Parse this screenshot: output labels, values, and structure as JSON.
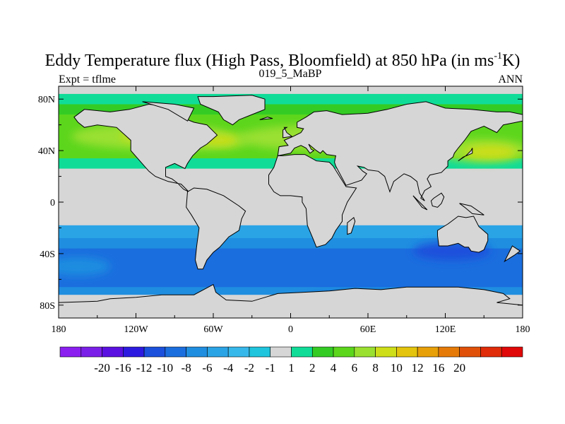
{
  "chart_data": {
    "type": "heatmap",
    "title_main": "Eddy Temperature flux (High Pass, Bloomfield) at 850 hPa (in ms",
    "title_sup": "-1",
    "title_end": "K)",
    "left_string": "Expt = tflme",
    "center_string": "019_5_MaBP",
    "right_string": "ANN",
    "x_ticks": [
      {
        "value": -180,
        "label": "180"
      },
      {
        "value": -120,
        "label": "120W"
      },
      {
        "value": -60,
        "label": "60W"
      },
      {
        "value": 0,
        "label": "0"
      },
      {
        "value": 60,
        "label": "60E"
      },
      {
        "value": 120,
        "label": "120E"
      },
      {
        "value": 180,
        "label": "180"
      }
    ],
    "y_ticks": [
      {
        "value": 80,
        "label": "80N"
      },
      {
        "value": 40,
        "label": "40N"
      },
      {
        "value": 0,
        "label": "0"
      },
      {
        "value": -40,
        "label": "40S"
      },
      {
        "value": -80,
        "label": "80S"
      }
    ],
    "xlim": [
      -180,
      180
    ],
    "ylim": [
      -90,
      90
    ],
    "colorbar": {
      "colors": [
        "#8a1ff0",
        "#7a1fe8",
        "#5a10e0",
        "#2d1ae0",
        "#1a50dc",
        "#1b6ede",
        "#1f8ee0",
        "#2ba4e6",
        "#37b8ea",
        "#1fc5dd",
        "#d6d6d6",
        "#10dc98",
        "#34cc24",
        "#5cd61c",
        "#9ae030",
        "#cede18",
        "#e4c40c",
        "#e8a008",
        "#e67a08",
        "#e05008",
        "#e02c08",
        "#e00808"
      ],
      "labels": [
        "-20",
        "-16",
        "-12",
        "-10",
        "-8",
        "-6",
        "-4",
        "-2",
        "-1",
        "1",
        "2",
        "4",
        "6",
        "8",
        "10",
        "12",
        "16",
        "20"
      ],
      "label_boundaries": [
        2,
        3,
        4,
        5,
        6,
        7,
        8,
        9,
        10,
        11,
        12,
        13,
        14,
        15,
        16,
        17,
        18,
        19,
        20,
        21
      ]
    },
    "zonal_bands": [
      {
        "lat_from": 90,
        "lat_to": 84,
        "color": "#d6d6d6"
      },
      {
        "lat_from": 84,
        "lat_to": 76,
        "color": "#10dc98"
      },
      {
        "lat_from": 76,
        "lat_to": 68,
        "color": "#34cc24"
      },
      {
        "lat_from": 68,
        "lat_to": 34,
        "color": "#5cd61c"
      },
      {
        "lat_from": 34,
        "lat_to": 26,
        "color": "#10dc98"
      },
      {
        "lat_from": 26,
        "lat_to": -18,
        "color": "#d6d6d6"
      },
      {
        "lat_from": -18,
        "lat_to": -28,
        "color": "#2ba4e6"
      },
      {
        "lat_from": -28,
        "lat_to": -36,
        "color": "#1f8ee0"
      },
      {
        "lat_from": -36,
        "lat_to": -66,
        "color": "#1b6ede"
      },
      {
        "lat_from": -66,
        "lat_to": -72,
        "color": "#1f8ee0"
      },
      {
        "lat_from": -72,
        "lat_to": -90,
        "color": "#d6d6d6"
      }
    ],
    "flux_patches": [
      {
        "lon": -110,
        "lat": 51,
        "rlon": 60,
        "rlat": 10,
        "color": "#9ae030"
      },
      {
        "lon": -60,
        "lat": 48,
        "rlon": 28,
        "rlat": 7,
        "color": "#9ae030"
      },
      {
        "lon": -100,
        "lat": 51,
        "rlon": 32,
        "rlat": 5,
        "color": "#cede18"
      },
      {
        "lon": -55,
        "lat": 48,
        "rlon": 14,
        "rlat": 4,
        "color": "#cede18"
      },
      {
        "lon": 20,
        "lat": 50,
        "rlon": 60,
        "rlat": 10,
        "color": "#9ae030"
      },
      {
        "lon": 30,
        "lat": 48,
        "rlon": 18,
        "rlat": 5,
        "color": "#cede18"
      },
      {
        "lon": 150,
        "lat": 40,
        "rlon": 35,
        "rlat": 9,
        "color": "#9ae030"
      },
      {
        "lon": 155,
        "lat": 39,
        "rlon": 20,
        "rlat": 5,
        "color": "#cede18"
      },
      {
        "lon": 55,
        "lat": -77,
        "rlon": 50,
        "rlat": 6,
        "color": "#1a50dc"
      },
      {
        "lon": 50,
        "lat": -76,
        "rlon": 20,
        "rlat": 3,
        "color": "#2d1ae0"
      },
      {
        "lon": 125,
        "lat": -38,
        "rlon": 30,
        "rlat": 7,
        "color": "#1a50dc"
      },
      {
        "lon": -165,
        "lat": -50,
        "rlon": 25,
        "rlat": 7,
        "color": "#1f8ee0"
      },
      {
        "lon": 40,
        "lat": -86,
        "rlon": 60,
        "rlat": 3,
        "color": "#34cc24"
      }
    ],
    "land_polygons": [
      [
        [
          -168,
          66
        ],
        [
          -160,
          72
        ],
        [
          -140,
          70
        ],
        [
          -125,
          72
        ],
        [
          -110,
          76
        ],
        [
          -95,
          74
        ],
        [
          -85,
          70
        ],
        [
          -80,
          64
        ],
        [
          -75,
          62
        ],
        [
          -65,
          60
        ],
        [
          -57,
          52
        ],
        [
          -65,
          45
        ],
        [
          -70,
          42
        ],
        [
          -76,
          36
        ],
        [
          -80,
          30
        ],
        [
          -82,
          26
        ],
        [
          -90,
          30
        ],
        [
          -97,
          27
        ],
        [
          -97,
          20
        ],
        [
          -92,
          18
        ],
        [
          -88,
          15
        ],
        [
          -83,
          10
        ],
        [
          -79,
          8
        ],
        [
          -85,
          14
        ],
        [
          -95,
          16
        ],
        [
          -105,
          20
        ],
        [
          -110,
          24
        ],
        [
          -117,
          32
        ],
        [
          -124,
          40
        ],
        [
          -124,
          48
        ],
        [
          -135,
          58
        ],
        [
          -150,
          60
        ],
        [
          -160,
          58
        ],
        [
          -165,
          62
        ],
        [
          -168,
          66
        ]
      ],
      [
        [
          -72,
          82
        ],
        [
          -60,
          82
        ],
        [
          -30,
          83
        ],
        [
          -20,
          80
        ],
        [
          -20,
          72
        ],
        [
          -30,
          68
        ],
        [
          -40,
          64
        ],
        [
          -45,
          60
        ],
        [
          -52,
          64
        ],
        [
          -56,
          70
        ],
        [
          -70,
          76
        ],
        [
          -72,
          82
        ]
      ],
      [
        [
          -80,
          8
        ],
        [
          -75,
          11
        ],
        [
          -65,
          10
        ],
        [
          -52,
          5
        ],
        [
          -40,
          -3
        ],
        [
          -35,
          -7
        ],
        [
          -38,
          -13
        ],
        [
          -40,
          -22
        ],
        [
          -48,
          -27
        ],
        [
          -55,
          -35
        ],
        [
          -60,
          -39
        ],
        [
          -65,
          -45
        ],
        [
          -68,
          -52
        ],
        [
          -72,
          -52
        ],
        [
          -74,
          -45
        ],
        [
          -73,
          -35
        ],
        [
          -71,
          -20
        ],
        [
          -77,
          -10
        ],
        [
          -81,
          -4
        ],
        [
          -80,
          8
        ]
      ],
      [
        [
          -10,
          36
        ],
        [
          -6,
          36
        ],
        [
          3,
          37
        ],
        [
          11,
          37
        ],
        [
          20,
          32
        ],
        [
          30,
          31
        ],
        [
          33,
          28
        ],
        [
          38,
          20
        ],
        [
          43,
          12
        ],
        [
          51,
          11
        ],
        [
          44,
          0
        ],
        [
          40,
          -10
        ],
        [
          40,
          -15
        ],
        [
          35,
          -22
        ],
        [
          32,
          -28
        ],
        [
          27,
          -33
        ],
        [
          20,
          -35
        ],
        [
          18,
          -30
        ],
        [
          13,
          -18
        ],
        [
          12,
          -5
        ],
        [
          9,
          0
        ],
        [
          9,
          4
        ],
        [
          0,
          5
        ],
        [
          -8,
          5
        ],
        [
          -13,
          8
        ],
        [
          -17,
          14
        ],
        [
          -17,
          21
        ],
        [
          -13,
          27
        ],
        [
          -10,
          36
        ]
      ],
      [
        [
          -10,
          36
        ],
        [
          -9,
          43
        ],
        [
          -2,
          44
        ],
        [
          -5,
          48
        ],
        [
          2,
          51
        ],
        [
          8,
          54
        ],
        [
          10,
          57
        ],
        [
          5,
          58
        ],
        [
          5,
          62
        ],
        [
          12,
          66
        ],
        [
          18,
          70
        ],
        [
          28,
          71
        ],
        [
          40,
          68
        ],
        [
          60,
          69
        ],
        [
          75,
          72
        ],
        [
          90,
          76
        ],
        [
          105,
          78
        ],
        [
          120,
          73
        ],
        [
          140,
          72
        ],
        [
          160,
          70
        ],
        [
          170,
          70
        ],
        [
          180,
          68
        ],
        [
          180,
          63
        ],
        [
          165,
          60
        ],
        [
          160,
          54
        ],
        [
          150,
          59
        ],
        [
          140,
          55
        ],
        [
          135,
          48
        ],
        [
          130,
          42
        ],
        [
          127,
          38
        ],
        [
          126,
          35
        ],
        [
          122,
          32
        ],
        [
          122,
          28
        ],
        [
          117,
          23
        ],
        [
          108,
          21
        ],
        [
          106,
          18
        ],
        [
          109,
          12
        ],
        [
          104,
          9
        ],
        [
          101,
          3
        ],
        [
          104,
          1
        ],
        [
          100,
          7
        ],
        [
          98,
          16
        ],
        [
          93,
          20
        ],
        [
          88,
          22
        ],
        [
          80,
          16
        ],
        [
          77,
          8
        ],
        [
          73,
          20
        ],
        [
          68,
          24
        ],
        [
          60,
          25
        ],
        [
          57,
          27
        ],
        [
          52,
          28
        ],
        [
          56,
          24
        ],
        [
          59,
          22
        ],
        [
          55,
          17
        ],
        [
          43,
          13
        ],
        [
          35,
          28
        ],
        [
          34,
          31
        ],
        [
          35,
          36
        ],
        [
          28,
          37
        ],
        [
          25,
          40
        ],
        [
          23,
          38
        ],
        [
          20,
          40
        ],
        [
          14,
          45
        ],
        [
          16,
          41
        ],
        [
          18,
          40
        ],
        [
          15,
          38
        ],
        [
          12,
          42
        ],
        [
          8,
          44
        ],
        [
          3,
          42
        ],
        [
          0,
          38
        ],
        [
          -10,
          36
        ]
      ],
      [
        [
          114,
          -22
        ],
        [
          114,
          -26
        ],
        [
          115,
          -34
        ],
        [
          122,
          -34
        ],
        [
          130,
          -32
        ],
        [
          135,
          -35
        ],
        [
          138,
          -35
        ],
        [
          140,
          -38
        ],
        [
          146,
          -39
        ],
        [
          150,
          -37
        ],
        [
          153,
          -30
        ],
        [
          153,
          -25
        ],
        [
          146,
          -19
        ],
        [
          142,
          -11
        ],
        [
          136,
          -12
        ],
        [
          130,
          -11
        ],
        [
          122,
          -17
        ],
        [
          114,
          -22
        ]
      ],
      [
        [
          -180,
          -78
        ],
        [
          -150,
          -77
        ],
        [
          -140,
          -75
        ],
        [
          -120,
          -74
        ],
        [
          -100,
          -72
        ],
        [
          -75,
          -72
        ],
        [
          -60,
          -64
        ],
        [
          -58,
          -70
        ],
        [
          -50,
          -76
        ],
        [
          -30,
          -77
        ],
        [
          -10,
          -71
        ],
        [
          10,
          -70
        ],
        [
          30,
          -69
        ],
        [
          50,
          -67
        ],
        [
          70,
          -68
        ],
        [
          90,
          -66
        ],
        [
          110,
          -66
        ],
        [
          130,
          -66
        ],
        [
          150,
          -68
        ],
        [
          165,
          -71
        ],
        [
          170,
          -75
        ],
        [
          160,
          -78
        ],
        [
          180,
          -80
        ],
        [
          180,
          -90
        ],
        [
          -180,
          -90
        ],
        [
          -180,
          -78
        ]
      ],
      [
        [
          44,
          -25
        ],
        [
          47,
          -24
        ],
        [
          50,
          -15
        ],
        [
          49,
          -12
        ],
        [
          44,
          -16
        ],
        [
          44,
          -25
        ]
      ],
      [
        [
          95,
          5
        ],
        [
          100,
          0
        ],
        [
          106,
          -6
        ],
        [
          102,
          -4
        ],
        [
          95,
          5
        ]
      ],
      [
        [
          109,
          1
        ],
        [
          111,
          3
        ],
        [
          117,
          7
        ],
        [
          119,
          4
        ],
        [
          117,
          -1
        ],
        [
          114,
          -4
        ],
        [
          110,
          -3
        ],
        [
          109,
          1
        ]
      ],
      [
        [
          131,
          -1
        ],
        [
          140,
          -3
        ],
        [
          150,
          -10
        ],
        [
          141,
          -9
        ],
        [
          135,
          -4
        ],
        [
          131,
          -1
        ]
      ],
      [
        [
          130,
          32
        ],
        [
          134,
          35
        ],
        [
          141,
          38
        ],
        [
          141,
          42
        ],
        [
          140,
          40
        ],
        [
          136,
          36
        ],
        [
          130,
          32
        ]
      ],
      [
        [
          -6,
          50
        ],
        [
          1,
          51
        ],
        [
          -3,
          54
        ],
        [
          -5,
          58
        ],
        [
          -3,
          58
        ],
        [
          -6,
          56
        ],
        [
          -6,
          50
        ]
      ],
      [
        [
          -24,
          64
        ],
        [
          -14,
          65
        ],
        [
          -18,
          66
        ],
        [
          -24,
          64
        ]
      ],
      [
        [
          166,
          -46
        ],
        [
          174,
          -41
        ],
        [
          178,
          -38
        ],
        [
          172,
          -34
        ],
        [
          166,
          -46
        ]
      ],
      [
        [
          -80,
          63
        ],
        [
          -75,
          73
        ],
        [
          -90,
          76
        ],
        [
          -115,
          78
        ],
        [
          -95,
          72
        ],
        [
          -80,
          63
        ]
      ]
    ]
  }
}
